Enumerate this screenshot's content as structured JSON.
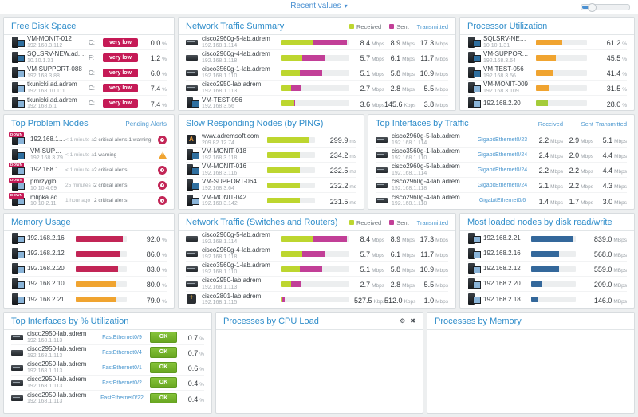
{
  "topbar": {
    "view_label": "Recent values",
    "caret": "▾"
  },
  "legend": {
    "received": "Received",
    "sent": "Sent",
    "transmitted": "Transmitted"
  },
  "colors": {
    "title_blue": "#2f8dca",
    "link_blue": "#4a97cf",
    "green": "#bdd62f",
    "magenta": "#c23f97",
    "orange": "#f0a430",
    "crimson": "#c22556",
    "blue_bar": "#34689b",
    "ok_green": "#76b82a",
    "badge_red": "#c51a56"
  },
  "panels": {
    "free_disk": {
      "title": "Free Disk Space",
      "rows": [
        {
          "icon": "i-server",
          "name": "VM-MONIT-012",
          "ip": "192.168.3.112",
          "drive": "C:",
          "badge": "very low",
          "value": "0.0",
          "unit": "%"
        },
        {
          "icon": "i-server",
          "name": "SQLSRV-NEW.ad.adr...",
          "ip": "10.10.1.31",
          "drive": "F:",
          "badge": "very low",
          "value": "1.2",
          "unit": "%"
        },
        {
          "icon": "i-pc",
          "name": "VM-SUPPORT-088",
          "ip": "192.168.3.88",
          "drive": "C:",
          "badge": "very low",
          "value": "6.0",
          "unit": "%"
        },
        {
          "icon": "i-pc",
          "name": "tkunicki.ad.adrem",
          "ip": "192.168.10.111",
          "drive": "C:",
          "badge": "very low",
          "value": "7.4",
          "unit": "%"
        },
        {
          "icon": "i-pc",
          "name": "tkunicki.ad.adrem",
          "ip": "192.168.6.1",
          "drive": "C:",
          "badge": "very low",
          "value": "7.4",
          "unit": "%"
        }
      ]
    },
    "net_summary": {
      "title": "Network Traffic Summary",
      "rows": [
        {
          "icon": "i-switch",
          "name": "cisco2960g-5-lab.adrem",
          "ip": "192.168.1.114",
          "bar": [
            {
              "pct": 46.6,
              "hex": "#bdd62f"
            },
            {
              "pct": 49.4,
              "hex": "#c23f97"
            }
          ],
          "v1": "8.4",
          "u1": "Mbps",
          "v2": "8.9",
          "u2": "Mbps",
          "v3": "17.3",
          "u3": "Mbps"
        },
        {
          "icon": "i-switch",
          "name": "cisco2960g-4-lab.adrem",
          "ip": "192.168.1.118",
          "bar": [
            {
              "pct": 31.6,
              "hex": "#bdd62f"
            },
            {
              "pct": 33.9,
              "hex": "#c23f97"
            }
          ],
          "v1": "5.7",
          "u1": "Mbps",
          "v2": "6.1",
          "u2": "Mbps",
          "v3": "11.7",
          "u3": "Mbps"
        },
        {
          "icon": "i-switch",
          "name": "cisco3560g-1-lab.adrem",
          "ip": "192.168.1.110",
          "bar": [
            {
              "pct": 28.3,
              "hex": "#bdd62f"
            },
            {
              "pct": 32.2,
              "hex": "#c23f97"
            }
          ],
          "v1": "5.1",
          "u1": "Mbps",
          "v2": "5.8",
          "u2": "Mbps",
          "v3": "10.9",
          "u3": "Mbps"
        },
        {
          "icon": "i-switch",
          "name": "cisco2950-lab.adrem",
          "ip": "192.168.1.113",
          "bar": [
            {
              "pct": 15.0,
              "hex": "#bdd62f"
            },
            {
              "pct": 15.5,
              "hex": "#c23f97"
            }
          ],
          "v1": "2.7",
          "u1": "Mbps",
          "v2": "2.8",
          "u2": "Mbps",
          "v3": "5.5",
          "u3": "Mbps"
        },
        {
          "icon": "i-server",
          "name": "VM-TEST-056",
          "ip": "192.168.3.56",
          "bar": [
            {
              "pct": 20.0,
              "hex": "#bdd62f"
            },
            {
              "pct": 1.0,
              "hex": "#c23f97"
            }
          ],
          "v1": "3.6",
          "u1": "Mbps",
          "v2": "145.6",
          "u2": "Kbps",
          "v3": "3.8",
          "u3": "Mbps"
        }
      ]
    },
    "processor": {
      "title": "Processor Utilization",
      "rows": [
        {
          "icon": "i-server",
          "name": "SQLSRV-NEW.ad.adrem",
          "ip": "10.10.1.31",
          "bar": {
            "pct": 52,
            "hex": "#f0a430"
          },
          "value": "61.2",
          "unit": "%"
        },
        {
          "icon": "i-server",
          "name": "VM-SUPPORT-064",
          "ip": "192.168.3.64",
          "bar": {
            "pct": 39,
            "hex": "#f0a430"
          },
          "value": "45.5",
          "unit": "%"
        },
        {
          "icon": "i-server",
          "name": "VM-TEST-056",
          "ip": "192.168.3.56",
          "bar": {
            "pct": 35,
            "hex": "#f0a430"
          },
          "value": "41.4",
          "unit": "%"
        },
        {
          "icon": "i-pc",
          "name": "VM-MONIT-009",
          "ip": "192.168.3.109",
          "bar": {
            "pct": 27,
            "hex": "#f0a430"
          },
          "value": "31.5",
          "unit": "%"
        },
        {
          "icon": "i-pc",
          "name": "192.168.2.20",
          "bar": {
            "pct": 24,
            "hex": "#a4cc39"
          },
          "value": "28.0",
          "unit": "%"
        }
      ]
    },
    "problems": {
      "title": "Top Problem Nodes",
      "link": "Pending Alerts",
      "rows": [
        {
          "icon": "i-pc",
          "down": "DOWN",
          "name": "192.168.10.23",
          "time": "< 1 minute ago",
          "alerts": "2 critical alerts 1 warning",
          "status": "st-critical"
        },
        {
          "icon": "i-server",
          "name": "VM-SUPPORT-079",
          "ip": "192.168.3.79",
          "time": "< 1 minute ago",
          "alerts": "1 warning",
          "status": "st-warning"
        },
        {
          "icon": "i-pc",
          "down": "DOWN",
          "name": "192.168.10.30",
          "time": "< 1 minute ago",
          "alerts": "2 critical alerts",
          "status": "st-critical"
        },
        {
          "icon": "i-pc",
          "down": "DOWN",
          "name": "pmrzyglod.ad.adrem",
          "ip": "10.10.4.69",
          "time": "25 minutes ago",
          "alerts": "2 critical alerts",
          "status": "st-critical"
        },
        {
          "icon": "i-pc",
          "down": "DOWN",
          "name": "mlipka.ad.adrem",
          "ip": "10.10.2.11",
          "time": "1 hour ago",
          "alerts": "2 critical alerts",
          "status": "st-critical"
        }
      ]
    },
    "ping": {
      "title": "Slow Responding Nodes (by PING)",
      "rows": [
        {
          "icon": "i-globe",
          "name": "www.adremsoft.com",
          "ip": "209.82.12.74",
          "bar": {
            "pct": 88,
            "hex": "#bdd62f"
          },
          "value": "299.9",
          "unit": "ms"
        },
        {
          "icon": "i-server",
          "name": "VM-MONIT-018",
          "ip": "192.168.3.118",
          "bar": {
            "pct": 68.7,
            "hex": "#bdd62f"
          },
          "value": "234.2",
          "unit": "ms"
        },
        {
          "icon": "i-server",
          "name": "VM-MONIT-016",
          "ip": "192.168.3.116",
          "bar": {
            "pct": 68.2,
            "hex": "#bdd62f"
          },
          "value": "232.5",
          "unit": "ms"
        },
        {
          "icon": "i-server",
          "name": "VM-SUPPORT-064",
          "ip": "192.168.3.64",
          "bar": {
            "pct": 68.1,
            "hex": "#bdd62f"
          },
          "value": "232.2",
          "unit": "ms"
        },
        {
          "icon": "i-pc",
          "name": "VM-MONIT-042",
          "ip": "192.168.3.142",
          "bar": {
            "pct": 67.9,
            "hex": "#bdd62f"
          },
          "value": "231.5",
          "unit": "ms"
        }
      ]
    },
    "if_traffic": {
      "title": "Top Interfaces by Traffic",
      "rows": [
        {
          "icon": "i-switch",
          "name": "cisco2960g-5-lab.adrem",
          "ip": "192.168.1.114",
          "iface": "GigabitEthernet0/23",
          "v1": "2.2",
          "u1": "Mbps",
          "v2": "2.9",
          "u2": "Mbps",
          "v3": "5.1",
          "u3": "Mbps"
        },
        {
          "icon": "i-switch",
          "name": "cisco3560g-1-lab.adrem",
          "ip": "192.168.1.110",
          "iface": "GigabitEthernet0/24",
          "v1": "2.4",
          "u1": "Mbps",
          "v2": "2.0",
          "u2": "Mbps",
          "v3": "4.4",
          "u3": "Mbps"
        },
        {
          "icon": "i-switch",
          "name": "cisco2960g-5-lab.adrem",
          "ip": "192.168.1.114",
          "iface": "GigabitEthernet0/24",
          "v1": "2.2",
          "u1": "Mbps",
          "v2": "2.2",
          "u2": "Mbps",
          "v3": "4.4",
          "u3": "Mbps"
        },
        {
          "icon": "i-switch",
          "name": "cisco2960g-4-lab.adrem",
          "ip": "192.168.1.118",
          "iface": "GigabitEthernet0/24",
          "v1": "2.1",
          "u1": "Mbps",
          "v2": "2.2",
          "u2": "Mbps",
          "v3": "4.3",
          "u3": "Mbps"
        },
        {
          "icon": "i-switch",
          "name": "cisco2960g-4-lab.adrem",
          "ip": "192.168.1.118",
          "iface": "GigabitEthernet0/6",
          "v1": "1.4",
          "u1": "Mbps",
          "v2": "1.7",
          "u2": "Mbps",
          "v3": "3.0",
          "u3": "Mbps"
        }
      ]
    },
    "memory": {
      "title": "Memory Usage",
      "rows": [
        {
          "icon": "i-pc",
          "name": "192.168.2.16",
          "bar": {
            "pct": 92,
            "hex": "#c22556"
          },
          "value": "92.0",
          "unit": "%"
        },
        {
          "icon": "i-pc",
          "name": "192.168.2.12",
          "bar": {
            "pct": 86,
            "hex": "#c22556"
          },
          "value": "86.0",
          "unit": "%"
        },
        {
          "icon": "i-pc",
          "name": "192.168.2.20",
          "bar": {
            "pct": 83,
            "hex": "#c22556"
          },
          "value": "83.0",
          "unit": "%"
        },
        {
          "icon": "i-pc",
          "name": "192.168.2.10",
          "bar": {
            "pct": 80,
            "hex": "#f0a430"
          },
          "value": "80.0",
          "unit": "%"
        },
        {
          "icon": "i-pc",
          "name": "192.168.2.21",
          "bar": {
            "pct": 79,
            "hex": "#f0a430"
          },
          "value": "79.0",
          "unit": "%"
        }
      ]
    },
    "net_switches": {
      "title": "Network Traffic (Switches and Routers)",
      "rows": [
        {
          "icon": "i-switch",
          "name": "cisco2960g-5-lab.adrem",
          "ip": "192.168.1.114",
          "bar": [
            {
              "pct": 46.6,
              "hex": "#bdd62f"
            },
            {
              "pct": 49.4,
              "hex": "#c23f97"
            }
          ],
          "v1": "8.4",
          "u1": "Mbps",
          "v2": "8.9",
          "u2": "Mbps",
          "v3": "17.3",
          "u3": "Mbps"
        },
        {
          "icon": "i-switch",
          "name": "cisco2960g-4-lab.adrem",
          "ip": "192.168.1.118",
          "bar": [
            {
              "pct": 31.6,
              "hex": "#bdd62f"
            },
            {
              "pct": 33.9,
              "hex": "#c23f97"
            }
          ],
          "v1": "5.7",
          "u1": "Mbps",
          "v2": "6.1",
          "u2": "Mbps",
          "v3": "11.7",
          "u3": "Mbps"
        },
        {
          "icon": "i-switch",
          "name": "cisco3560g-1-lab.adrem",
          "ip": "192.168.1.110",
          "bar": [
            {
              "pct": 28.3,
              "hex": "#bdd62f"
            },
            {
              "pct": 32.2,
              "hex": "#c23f97"
            }
          ],
          "v1": "5.1",
          "u1": "Mbps",
          "v2": "5.8",
          "u2": "Mbps",
          "v3": "10.9",
          "u3": "Mbps"
        },
        {
          "icon": "i-switch",
          "name": "cisco2950-lab.adrem",
          "ip": "192.168.1.113",
          "bar": [
            {
              "pct": 15.0,
              "hex": "#bdd62f"
            },
            {
              "pct": 15.5,
              "hex": "#c23f97"
            }
          ],
          "v1": "2.7",
          "u1": "Mbps",
          "v2": "2.8",
          "u2": "Mbps",
          "v3": "5.5",
          "u3": "Mbps"
        },
        {
          "icon": "i-router",
          "name": "cisco2801-lab.adrem",
          "ip": "192.168.1.115",
          "bar": [
            {
              "pct": 2.9,
              "hex": "#bdd62f"
            },
            {
              "pct": 2.8,
              "hex": "#c23f97"
            }
          ],
          "v1": "527.5",
          "u1": "Kbps",
          "v2": "512.0",
          "u2": "Kbps",
          "v3": "1.0",
          "u3": "Mbps"
        }
      ]
    },
    "disk_rw": {
      "title": "Most loaded nodes by disk read/write",
      "rows": [
        {
          "icon": "i-pc",
          "name": "192.168.2.21",
          "bar": {
            "pct": 93,
            "hex": "#34689b"
          },
          "value": "839.0",
          "unit": "MBps"
        },
        {
          "icon": "i-pc",
          "name": "192.168.2.16",
          "bar": {
            "pct": 63,
            "hex": "#34689b"
          },
          "value": "568.0",
          "unit": "MBps"
        },
        {
          "icon": "i-pc",
          "name": "192.168.2.12",
          "bar": {
            "pct": 62,
            "hex": "#34689b"
          },
          "value": "559.0",
          "unit": "MBps"
        },
        {
          "icon": "i-pc",
          "name": "192.168.2.20",
          "bar": {
            "pct": 23,
            "hex": "#34689b"
          },
          "value": "209.0",
          "unit": "MBps"
        },
        {
          "icon": "i-pc",
          "name": "192.168.2.18",
          "bar": {
            "pct": 16,
            "hex": "#34689b"
          },
          "value": "146.0",
          "unit": "MBps"
        }
      ]
    },
    "if_util": {
      "title": "Top Interfaces by % Utilization",
      "rows": [
        {
          "icon": "i-switch",
          "name": "cisco2950-lab.adrem",
          "ip": "192.168.1.113",
          "iface": "FastEthernet0/9",
          "badge": "OK",
          "value": "0.7",
          "unit": "%"
        },
        {
          "icon": "i-switch",
          "name": "cisco2950-lab.adrem",
          "ip": "192.168.1.113",
          "iface": "FastEthernet0/4",
          "badge": "OK",
          "value": "0.7",
          "unit": "%"
        },
        {
          "icon": "i-switch",
          "name": "cisco2950-lab.adrem",
          "ip": "192.168.1.113",
          "iface": "FastEthernet0/1",
          "badge": "OK",
          "value": "0.6",
          "unit": "%"
        },
        {
          "icon": "i-switch",
          "name": "cisco2950-lab.adrem",
          "ip": "192.168.1.113",
          "iface": "FastEthernet0/2",
          "badge": "OK",
          "value": "0.4",
          "unit": "%"
        },
        {
          "icon": "i-switch",
          "name": "cisco2950-lab.adrem",
          "ip": "192.168.1.113",
          "iface": "FastEthernet0/22",
          "badge": "OK",
          "value": "0.4",
          "unit": "%"
        }
      ]
    },
    "cpu": {
      "title": "Processes by CPU Load",
      "gear_icon": "⚙",
      "close_icon": "✖"
    },
    "mem": {
      "title": "Processes by Memory"
    }
  }
}
